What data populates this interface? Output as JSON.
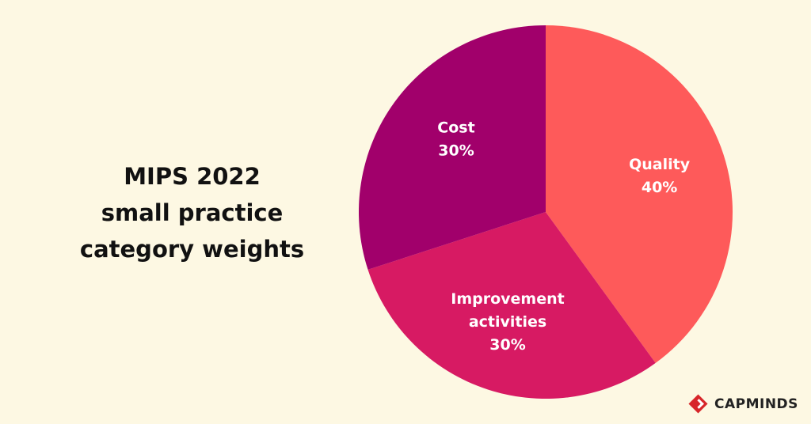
{
  "title_lines": [
    "MIPS 2022",
    "small practice",
    "category weights"
  ],
  "brand": {
    "name": "CAPMINDS",
    "logo_color": "#d7262a"
  },
  "colors": {
    "background": "#fdf8e3"
  },
  "chart_data": {
    "type": "pie",
    "start": "12 o'clock",
    "direction": "clockwise",
    "slices": [
      {
        "label_lines": [
          "Quality"
        ],
        "percent_label": "40%",
        "value": 40,
        "color": "#fe5a5a"
      },
      {
        "label_lines": [
          "Improvement",
          "activities"
        ],
        "percent_label": "30%",
        "value": 30,
        "color": "#d71a63"
      },
      {
        "label_lines": [
          "Cost"
        ],
        "percent_label": "30%",
        "value": 30,
        "color": "#a1006b"
      }
    ]
  }
}
